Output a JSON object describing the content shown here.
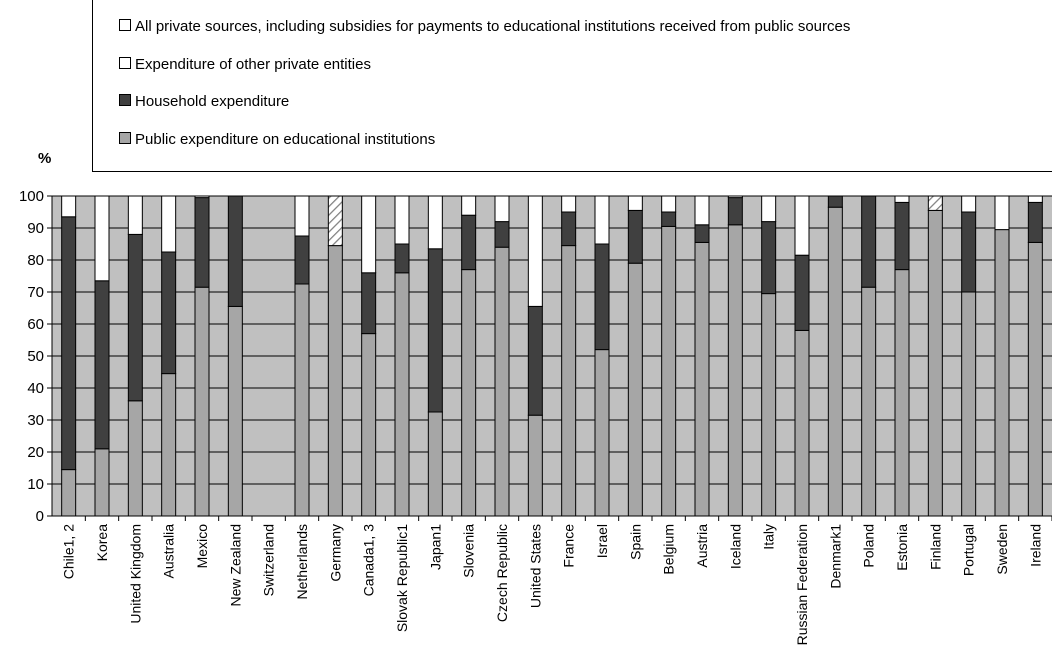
{
  "legend": {
    "items": [
      {
        "label": "All private sources, including subsidies for payments to educational institutions received from public sources",
        "color": "#ffffff",
        "pattern": "none"
      },
      {
        "label": "Expenditure of other private entities",
        "color": "#ffffff",
        "pattern": "none"
      },
      {
        "label": "Household expenditure",
        "color": "#404040",
        "pattern": "none"
      },
      {
        "label": "Public expenditure on educational institutions",
        "color": "#a6a6a6",
        "pattern": "none"
      }
    ]
  },
  "y_unit": "%",
  "colors": {
    "plot_background": "#c0c0c0",
    "public": "#a6a6a6",
    "household": "#404040",
    "other_private": "#ffffff",
    "hatched_private": "#ffffff"
  },
  "chart_data": {
    "type": "bar",
    "stacked": true,
    "categories": [
      "Chile1, 2",
      "Korea",
      "United Kingdom",
      "Australia",
      "Mexico",
      "New Zealand",
      "Switzerland",
      "Netherlands",
      "Germany",
      "Canada1, 3",
      "Slovak Republic1",
      "Japan1",
      "Slovenia",
      "Czech Republic",
      "United States",
      "France",
      "Israel",
      "Spain",
      "Belgium",
      "Austria",
      "Iceland",
      "Italy",
      "Russian Federation",
      "Denmark1",
      "Poland",
      "Estonia",
      "Finland",
      "Portugal",
      "Sweden",
      "Ireland"
    ],
    "series": [
      {
        "name": "Public expenditure on educational institutions",
        "values": [
          14.5,
          21,
          36,
          44.5,
          71.5,
          65.5,
          null,
          72.5,
          84.5,
          57,
          76,
          32.5,
          77,
          84,
          31.5,
          84.5,
          52,
          79,
          90.5,
          85.5,
          91,
          69.5,
          58,
          96.5,
          71.5,
          77,
          95.5,
          70,
          89.5,
          85.5
        ]
      },
      {
        "name": "Household expenditure",
        "values": [
          79,
          52.5,
          52,
          38,
          28,
          34.5,
          null,
          15,
          0,
          19,
          9,
          51,
          17,
          8,
          34,
          10.5,
          33,
          16.5,
          4.5,
          5.5,
          8.5,
          22.5,
          23.5,
          3.5,
          28.5,
          21,
          0,
          25,
          0,
          12.5
        ]
      },
      {
        "name": "Expenditure of other private entities",
        "values": [
          6.5,
          26.5,
          12,
          17.5,
          0.5,
          0,
          null,
          12.5,
          0,
          24,
          15,
          16.5,
          6,
          8,
          34.5,
          5,
          15,
          4.5,
          5,
          9,
          0.5,
          8,
          18.5,
          0,
          0,
          2,
          0,
          5,
          10.5,
          2
        ]
      },
      {
        "name": "All private sources, including subsidies for payments to educational institutions received from public sources",
        "values": [
          0,
          0,
          0,
          0,
          0,
          0,
          null,
          0,
          15.5,
          0,
          0,
          0,
          0,
          0,
          0,
          0,
          0,
          0,
          0,
          0,
          0,
          0,
          0,
          0,
          0,
          0,
          4.5,
          0,
          0,
          0
        ]
      }
    ],
    "ylim": [
      0,
      100
    ],
    "yticks": [
      0,
      10,
      20,
      30,
      40,
      50,
      60,
      70,
      80,
      90,
      100
    ],
    "grid": true,
    "legend_position": "top"
  }
}
